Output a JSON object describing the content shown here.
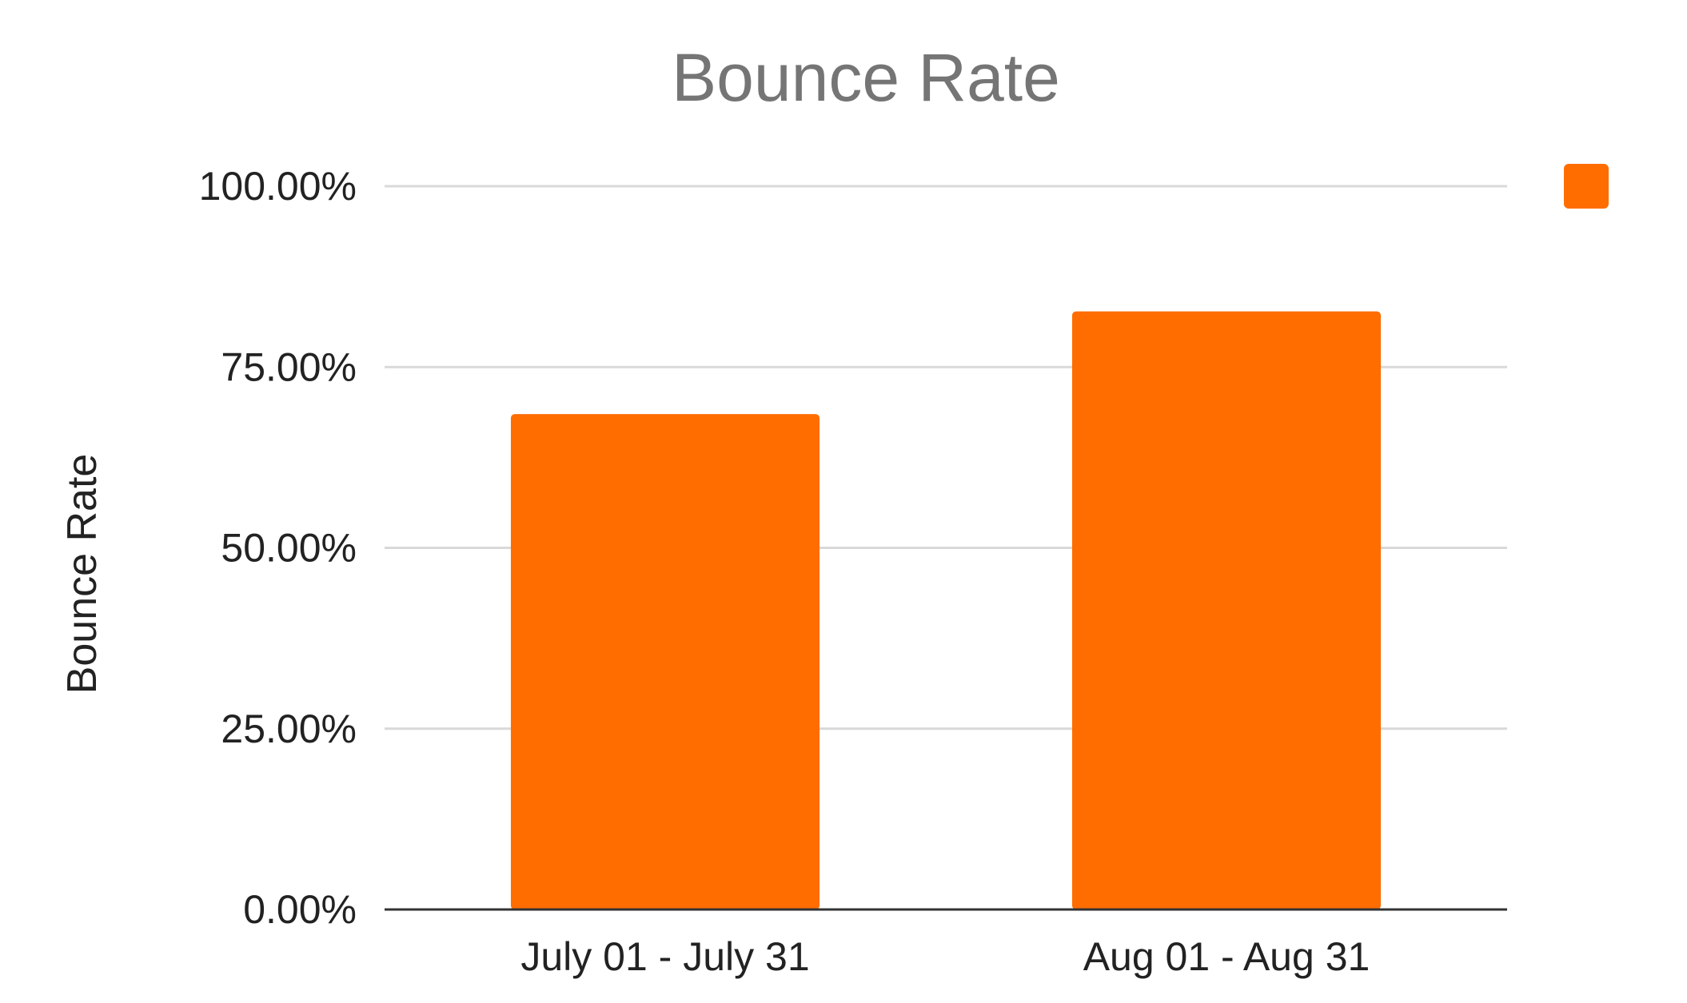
{
  "chart_data": {
    "type": "bar",
    "title": "Bounce Rate",
    "xlabel": "",
    "ylabel": "Bounce Rate",
    "categories": [
      "July 01 - July 31",
      "Aug 01 - Aug 31"
    ],
    "series": [
      {
        "values": [
          68.5,
          82.7
        ],
        "color": "#ff6d01"
      }
    ],
    "ylim": [
      0,
      100
    ],
    "yticks": [
      0,
      25,
      50,
      75,
      100
    ],
    "ytick_labels": [
      "0.00%",
      "25.00%",
      "50.00%",
      "75.00%",
      "100.00%"
    ],
    "grid": true,
    "legend": {
      "position": "top-right",
      "entries": [
        ""
      ]
    },
    "colors": {
      "title": "#757575",
      "text": "#222222",
      "grid": "#d9d9d9",
      "baseline": "#333333",
      "bar": "#ff6d01"
    }
  }
}
